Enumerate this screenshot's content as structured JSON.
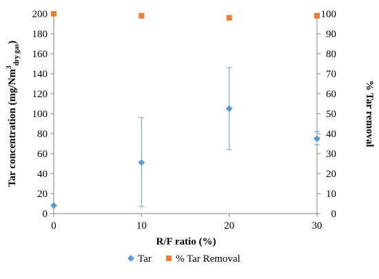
{
  "chart_data": {
    "type": "scatter",
    "title": "",
    "xlabel": "R/F ratio (%)",
    "ylabel_left": {
      "main": "Tar concentration (mg/Nm",
      "sup": "3",
      "sub": "dry gas",
      "close": ")"
    },
    "ylabel_right": "% Tar removal",
    "x_ticks": [
      "0",
      "10",
      "20",
      "30"
    ],
    "y_left_ticks": [
      "0",
      "20",
      "40",
      "60",
      "80",
      "100",
      "120",
      "140",
      "160",
      "180",
      "200"
    ],
    "y_right_ticks": [
      "0",
      "10",
      "20",
      "30",
      "40",
      "50",
      "60",
      "70",
      "80",
      "90",
      "100"
    ],
    "xlim": [
      0,
      30
    ],
    "ylim_left": [
      0,
      200
    ],
    "ylim_right": [
      0,
      100
    ],
    "grid": false,
    "legend_position": "bottom",
    "series": [
      {
        "name": "Tar",
        "axis": "left",
        "marker": "diamond",
        "color": "#5B9BD5",
        "x": [
          0,
          10,
          20,
          30
        ],
        "y": [
          8,
          51,
          105,
          75
        ],
        "error_low": [
          null,
          7,
          64,
          69
        ],
        "error_high": [
          null,
          96,
          146,
          82
        ]
      },
      {
        "name": "% Tar Removal",
        "axis": "right",
        "marker": "square",
        "color": "#ED7D31",
        "x": [
          0,
          10,
          20,
          30
        ],
        "y": [
          100,
          99,
          98,
          99
        ]
      }
    ]
  }
}
